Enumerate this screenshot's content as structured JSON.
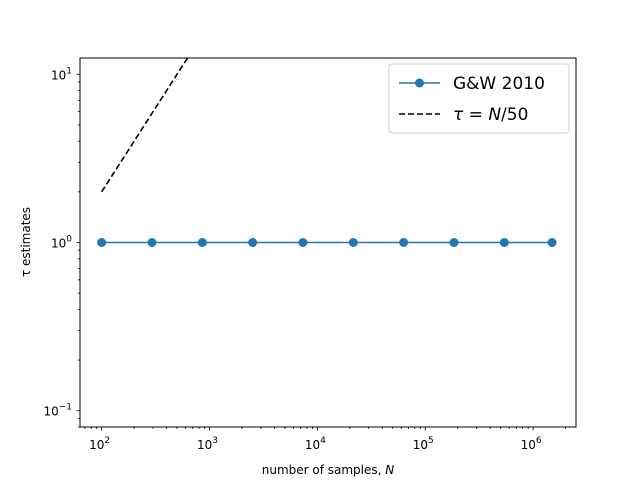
{
  "chart_data": {
    "type": "line",
    "xscale": "log",
    "yscale": "log",
    "xlim": [
      63,
      2500000
    ],
    "ylim": [
      0.08,
      12.5
    ],
    "xlabel": "number of samples, N",
    "ylabel": "τ estimates",
    "xticks": [
      {
        "value": 100,
        "base": "10",
        "exp": "2"
      },
      {
        "value": 1000,
        "base": "10",
        "exp": "3"
      },
      {
        "value": 10000,
        "base": "10",
        "exp": "4"
      },
      {
        "value": 100000,
        "base": "10",
        "exp": "5"
      },
      {
        "value": 1000000,
        "base": "10",
        "exp": "6"
      }
    ],
    "yticks": [
      {
        "value": 0.1,
        "base": "10",
        "exp": "−1"
      },
      {
        "value": 1,
        "base": "10",
        "exp": "0"
      },
      {
        "value": 10,
        "base": "10",
        "exp": "1"
      }
    ],
    "legend_position": "upper right",
    "grid": false,
    "series": [
      {
        "name": "G&W 2010",
        "style": "solid",
        "marker": "circle",
        "color": "#1f77b4",
        "x": [
          100,
          293,
          858,
          2512,
          7356,
          21544,
          63096,
          184785,
          541170,
          1500000
        ],
        "y": [
          1,
          1,
          1,
          1,
          1,
          1,
          1,
          1,
          1,
          1
        ]
      },
      {
        "name": "τ = N/50",
        "style": "dashed",
        "marker": "none",
        "color": "#000000",
        "x": [
          100,
          293,
          625
        ],
        "y": [
          2,
          5.86,
          12.5
        ]
      }
    ]
  }
}
